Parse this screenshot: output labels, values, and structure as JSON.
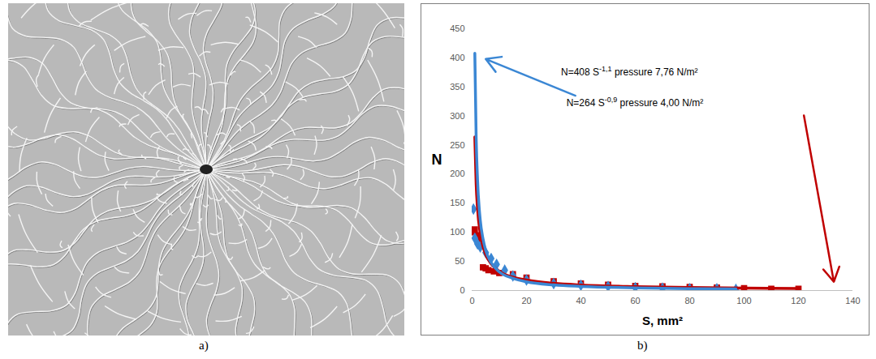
{
  "image_panel": {
    "label": "a)"
  },
  "chart_panel": {
    "label": "b)"
  },
  "chart_data": {
    "type": "scatter",
    "x_label": "S, mm²",
    "y_label": "N",
    "xlim": [
      0,
      140
    ],
    "xticks": [
      0,
      20,
      40,
      60,
      80,
      100,
      120,
      140
    ],
    "ylim": [
      0,
      450
    ],
    "yticks": [
      0,
      50,
      100,
      150,
      200,
      250,
      300,
      350,
      400,
      450
    ],
    "grid": false,
    "series": [
      {
        "type": "scatter",
        "marker": "square",
        "color": "#c00000",
        "x": [
          0.5,
          1,
          2,
          3,
          4,
          5,
          6,
          8,
          10,
          15,
          20,
          30,
          40,
          50,
          60,
          70,
          80,
          90,
          100,
          110,
          120
        ],
        "values": [
          100,
          105,
          95,
          85,
          40,
          38,
          35,
          33,
          30,
          28,
          22,
          16,
          12,
          10,
          8,
          7,
          6,
          5,
          4,
          3,
          3
        ]
      },
      {
        "type": "scatter",
        "marker": "diamond",
        "color": "#3b87d4",
        "x": [
          0.5,
          1,
          2,
          3,
          5,
          7,
          9,
          12,
          15,
          20,
          30,
          40,
          50,
          60,
          70,
          80,
          90,
          97
        ],
        "values": [
          140,
          90,
          80,
          75,
          65,
          55,
          45,
          35,
          25,
          18,
          12,
          9,
          7,
          5,
          4,
          3,
          3,
          2
        ]
      },
      {
        "type": "line",
        "color": "#c00000",
        "x": [
          1,
          1.5,
          2,
          3,
          4,
          5,
          7,
          10,
          15,
          20,
          30,
          40,
          60,
          80,
          100,
          120
        ],
        "values": [
          264,
          183,
          141,
          98,
          76,
          62,
          46,
          33,
          23,
          18,
          12.4,
          9.5,
          6.6,
          5.1,
          4.2,
          3.5
        ]
      },
      {
        "type": "line",
        "color": "#3b87d4",
        "x": [
          1,
          1.5,
          2,
          3,
          4,
          5,
          7,
          10,
          15,
          20,
          30,
          40,
          60,
          80,
          97
        ],
        "values": [
          408,
          261,
          190,
          121,
          89,
          69,
          48,
          32,
          21,
          15,
          9.6,
          7.1,
          4.6,
          3.3,
          2.7
        ]
      }
    ],
    "annotations": [
      {
        "text": "N=408 S",
        "sup": "-1,1",
        "text_after": " pressure 7,76 N/m²",
        "color": "#3b87d4",
        "x": 58,
        "y": 369,
        "arrow_from": [
          38,
          335
        ],
        "arrow_to": [
          5,
          398
        ]
      },
      {
        "text": "N=264 S",
        "sup": "-0,9",
        "text_after": " pressure 4,00 N/m²",
        "color": "#c00000",
        "x": 60,
        "y": 316,
        "arrow_from": [
          122,
          301
        ],
        "arrow_to": [
          133,
          15
        ]
      }
    ]
  }
}
